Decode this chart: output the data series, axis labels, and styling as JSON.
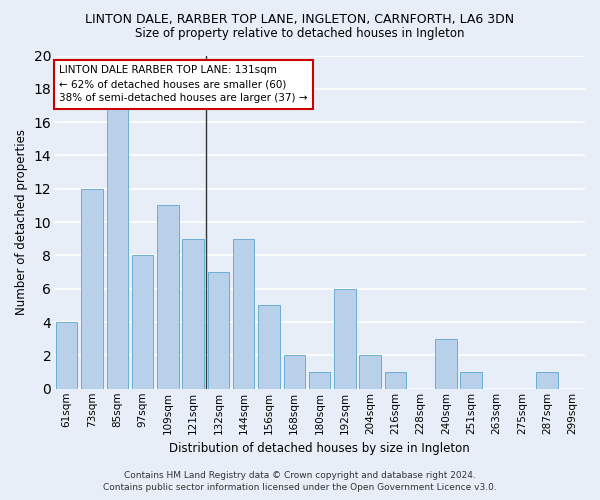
{
  "title": "LINTON DALE, RARBER TOP LANE, INGLETON, CARNFORTH, LA6 3DN",
  "subtitle": "Size of property relative to detached houses in Ingleton",
  "xlabel": "Distribution of detached houses by size in Ingleton",
  "ylabel": "Number of detached properties",
  "categories": [
    "61sqm",
    "73sqm",
    "85sqm",
    "97sqm",
    "109sqm",
    "121sqm",
    "132sqm",
    "144sqm",
    "156sqm",
    "168sqm",
    "180sqm",
    "192sqm",
    "204sqm",
    "216sqm",
    "228sqm",
    "240sqm",
    "251sqm",
    "263sqm",
    "275sqm",
    "287sqm",
    "299sqm"
  ],
  "values": [
    4,
    12,
    17,
    8,
    11,
    9,
    7,
    9,
    5,
    2,
    1,
    6,
    2,
    1,
    0,
    3,
    1,
    0,
    0,
    1,
    0
  ],
  "bar_color": "#b8d0ea",
  "bar_edge_color": "#6baed6",
  "subject_bar_index": 6,
  "subject_line_color": "#333333",
  "ylim": [
    0,
    20
  ],
  "yticks": [
    0,
    2,
    4,
    6,
    8,
    10,
    12,
    14,
    16,
    18,
    20
  ],
  "annotation_line1": "LINTON DALE RARBER TOP LANE: 131sqm",
  "annotation_line2": "← 62% of detached houses are smaller (60)",
  "annotation_line3": "38% of semi-detached houses are larger (37) →",
  "annotation_box_color": "#ffffff",
  "annotation_box_edge": "#cc0000",
  "footer_line1": "Contains HM Land Registry data © Crown copyright and database right 2024.",
  "footer_line2": "Contains public sector information licensed under the Open Government Licence v3.0.",
  "background_color": "#e8eef7",
  "grid_color": "#ffffff",
  "title_fontsize": 9,
  "subtitle_fontsize": 8.5
}
